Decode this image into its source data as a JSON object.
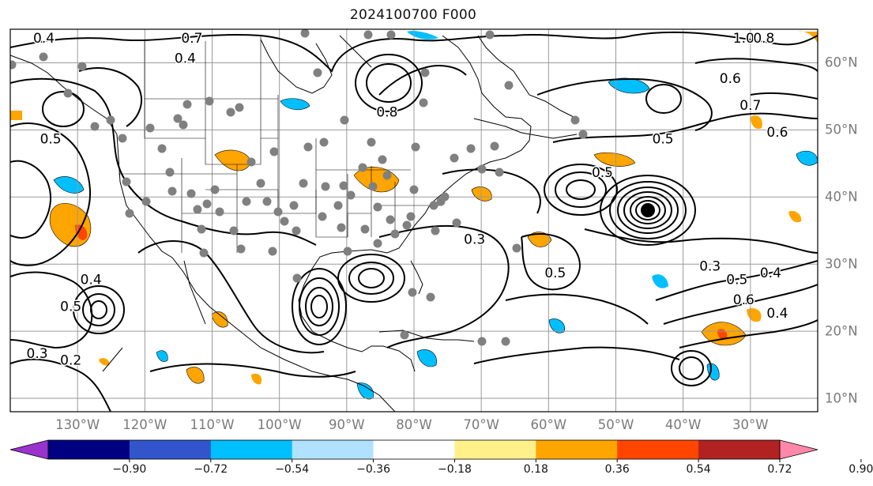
{
  "title": "2024100700 F000",
  "map": {
    "extent": {
      "lon_min": -140,
      "lon_max": -20,
      "lat_min": 8,
      "lat_max": 65
    },
    "lon_labels": [
      {
        "lon": -130,
        "text": "130°W"
      },
      {
        "lon": -120,
        "text": "120°W"
      },
      {
        "lon": -110,
        "text": "110°W"
      },
      {
        "lon": -100,
        "text": "100°W"
      },
      {
        "lon": -90,
        "text": "90°W"
      },
      {
        "lon": -80,
        "text": "80°W"
      },
      {
        "lon": -70,
        "text": "70°W"
      },
      {
        "lon": -60,
        "text": "60°W"
      },
      {
        "lon": -50,
        "text": "50°W"
      },
      {
        "lon": -40,
        "text": "40°W"
      },
      {
        "lon": -30,
        "text": "30°W"
      }
    ],
    "lat_labels": [
      {
        "lat": 60,
        "text": "60°N"
      },
      {
        "lat": 50,
        "text": "50°N"
      },
      {
        "lat": 40,
        "text": "40°N"
      },
      {
        "lat": 30,
        "text": "30°N"
      },
      {
        "lat": 20,
        "text": "20°N"
      },
      {
        "lat": 10,
        "text": "10°N"
      }
    ],
    "contour_labels": [
      {
        "text": "0.4",
        "lon": -135,
        "lat": 63
      },
      {
        "text": "0.7",
        "lon": -113,
        "lat": 63
      },
      {
        "text": "0.4",
        "lon": -114,
        "lat": 60
      },
      {
        "text": "1.0",
        "lon": -31,
        "lat": 63
      },
      {
        "text": "0.8",
        "lon": -28,
        "lat": 63
      },
      {
        "text": "0.6",
        "lon": -33,
        "lat": 57
      },
      {
        "text": "0.7",
        "lon": -30,
        "lat": 53
      },
      {
        "text": "0.6",
        "lon": -26,
        "lat": 49
      },
      {
        "text": "0.5",
        "lon": -43,
        "lat": 48
      },
      {
        "text": "0.8",
        "lon": -84,
        "lat": 52
      },
      {
        "text": "0.5",
        "lon": -134,
        "lat": 48
      },
      {
        "text": "0.5",
        "lon": -52,
        "lat": 43
      },
      {
        "text": "0.3",
        "lon": -71,
        "lat": 33
      },
      {
        "text": "0.5",
        "lon": -59,
        "lat": 28
      },
      {
        "text": "0.4",
        "lon": -128,
        "lat": 27
      },
      {
        "text": "0.5",
        "lon": -131,
        "lat": 23
      },
      {
        "text": "0.3",
        "lon": -136,
        "lat": 16
      },
      {
        "text": "0.2",
        "lon": -131,
        "lat": 15
      },
      {
        "text": "0.3",
        "lon": -36,
        "lat": 29
      },
      {
        "text": "0.5",
        "lon": -32,
        "lat": 27
      },
      {
        "text": "0.4",
        "lon": -27,
        "lat": 28
      },
      {
        "text": "0.6",
        "lon": -31,
        "lat": 24
      },
      {
        "text": "0.4",
        "lon": -26,
        "lat": 22
      }
    ],
    "colors": {
      "contour": "#000000",
      "coastline": "#000000",
      "grid": "#9a9a9a",
      "station_dot": "#808080",
      "storm_center": "#000000"
    }
  },
  "colorbar": {
    "colors": [
      "#9933cc",
      "#000080",
      "#3355cc",
      "#00bfff",
      "#b0e2ff",
      "#ffffff",
      "#fff08a",
      "#ffa500",
      "#ff4500",
      "#b22222",
      "#ff88aa"
    ],
    "ticks": [
      "−0.90",
      "−0.72",
      "−0.54",
      "−0.36",
      "−0.18",
      "0.18",
      "0.36",
      "0.54",
      "0.72",
      "0.90"
    ]
  }
}
